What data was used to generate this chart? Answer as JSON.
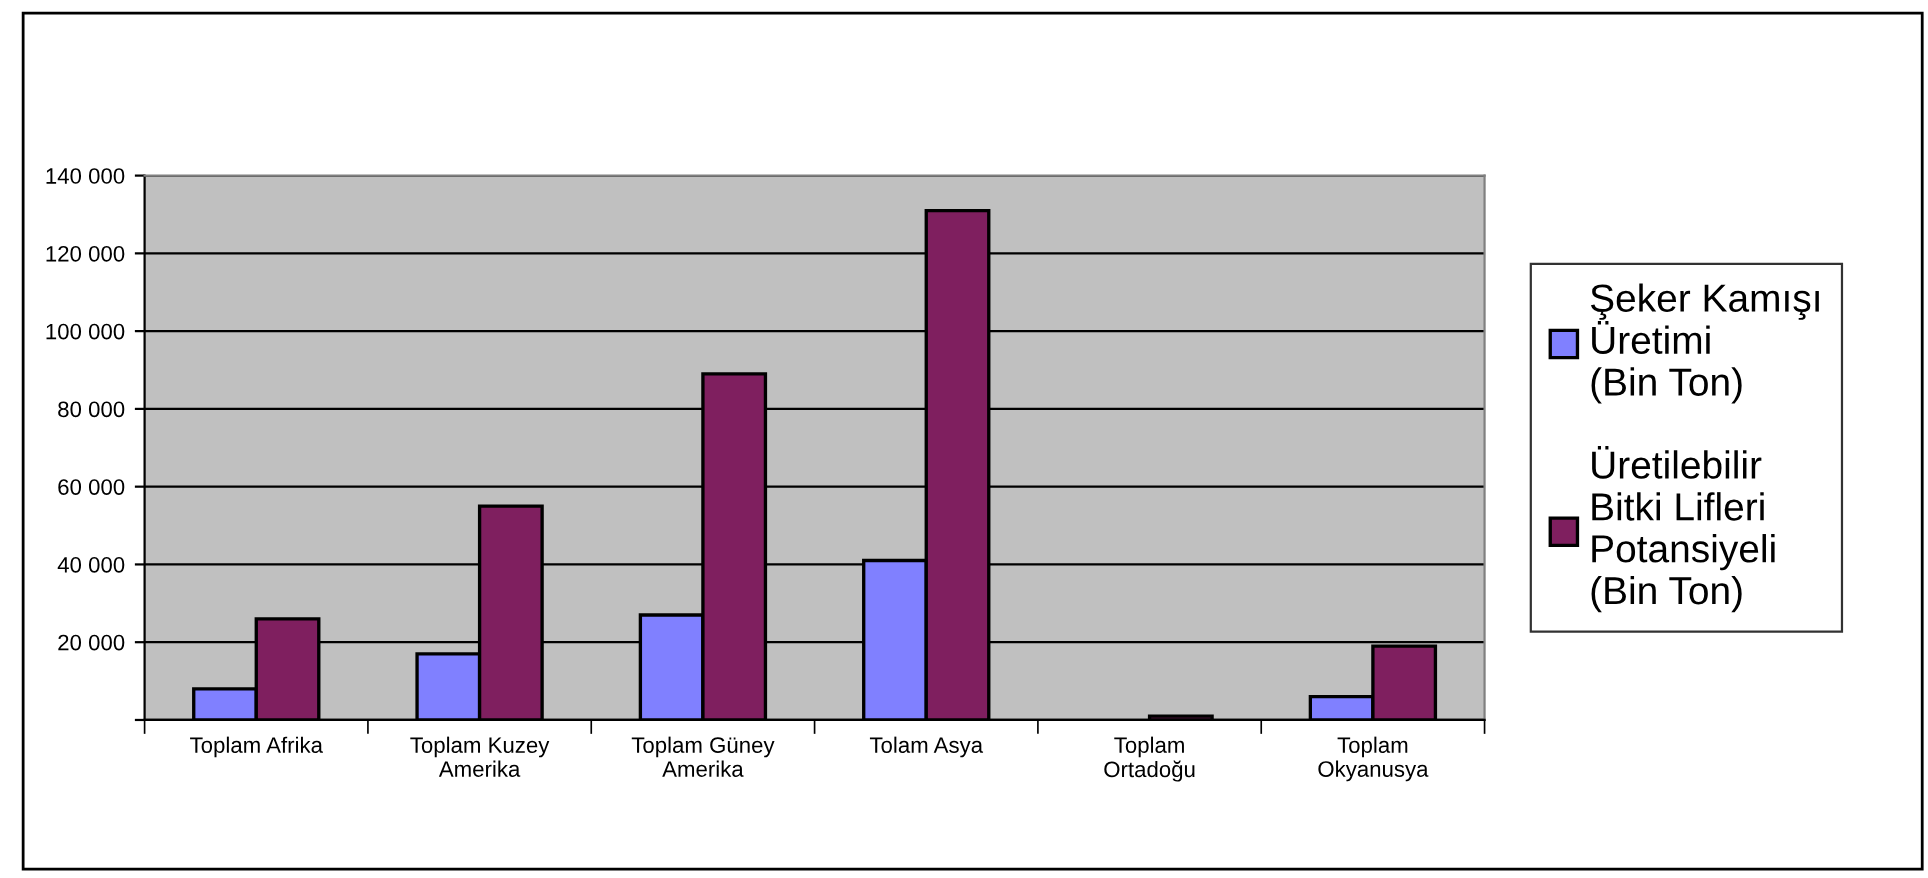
{
  "chart_data": {
    "type": "bar",
    "categories": [
      "Toplam Afrika",
      "Toplam Kuzey\nAmerika",
      "Toplam Güney\nAmerika",
      "Tolam Asya",
      "Toplam\nOrtadoğu",
      "Toplam\nOkyanusya"
    ],
    "series": [
      {
        "name": "Şeker Kamışı\nÜretimi\n(Bin Ton)",
        "color": "#8080ff",
        "values": [
          8000,
          17000,
          27000,
          41000,
          null,
          6000
        ]
      },
      {
        "name": "Üretilebilir\nBitki Lifleri\nPotansiyeli\n(Bin Ton)",
        "color": "#7f1f5f",
        "values": [
          26000,
          55000,
          89000,
          131000,
          1000,
          19000
        ]
      }
    ],
    "ylim": [
      0,
      140000
    ],
    "yticks": [
      {
        "value": 0,
        "label": null
      },
      {
        "value": 20000,
        "label": "20 000"
      },
      {
        "value": 40000,
        "label": "40 000"
      },
      {
        "value": 60000,
        "label": "60 000"
      },
      {
        "value": 80000,
        "label": "80 000"
      },
      {
        "value": 100000,
        "label": "100 000"
      },
      {
        "value": 120000,
        "label": "120 000"
      },
      {
        "value": 140000,
        "label": "140 000"
      }
    ],
    "grid": "y",
    "legend": "right"
  }
}
